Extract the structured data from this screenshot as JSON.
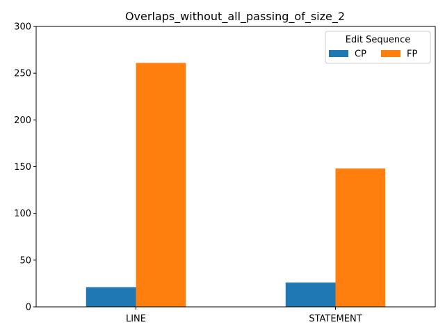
{
  "chart_data": {
    "type": "bar",
    "title": "Overlaps_without_all_passing_of_size_2",
    "xlabel": "",
    "ylabel": "",
    "categories": [
      "LINE",
      "STATEMENT"
    ],
    "series": [
      {
        "name": "CP",
        "values": [
          21,
          26
        ],
        "color": "#1f77b4"
      },
      {
        "name": "FP",
        "values": [
          261,
          148
        ],
        "color": "#ff7f0e"
      }
    ],
    "ylim": [
      0,
      300
    ],
    "yticks": [
      0,
      50,
      100,
      150,
      200,
      250,
      300
    ],
    "grid": false,
    "legend": {
      "title": "Edit Sequence",
      "placement": "top-right",
      "columns": 2
    }
  }
}
